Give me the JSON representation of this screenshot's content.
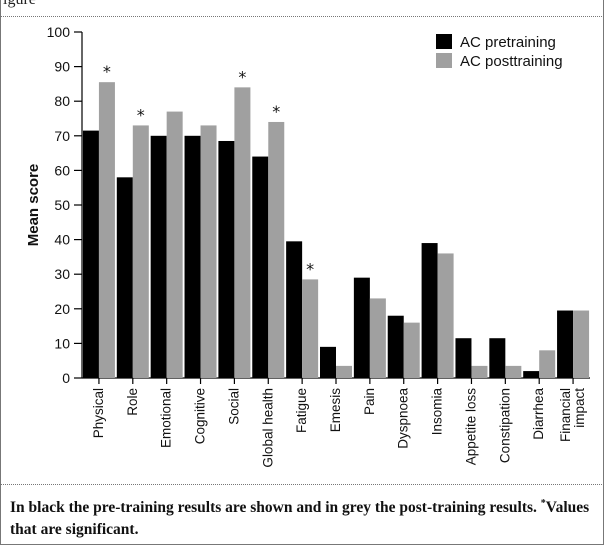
{
  "cropped_top_text": "igure",
  "chart_data": {
    "type": "bar",
    "ylabel": "Mean score",
    "ylim": [
      0,
      100
    ],
    "yticks": [
      0,
      10,
      20,
      30,
      40,
      50,
      60,
      70,
      80,
      90,
      100
    ],
    "categories": [
      "Physical",
      "Role",
      "Emotional",
      "Cognitive",
      "Social",
      "Global health",
      "Fatigue",
      "Emesis",
      "Pain",
      "Dyspnoea",
      "Insomia",
      "Appetite loss",
      "Constipation",
      "Diarrhea",
      "Financial impact"
    ],
    "category_lines": [
      [
        "Physical"
      ],
      [
        "Role"
      ],
      [
        "Emotional"
      ],
      [
        "Cognitive"
      ],
      [
        "Social"
      ],
      [
        "Global health"
      ],
      [
        "Fatigue"
      ],
      [
        "Emesis"
      ],
      [
        "Pain"
      ],
      [
        "Dyspnoea"
      ],
      [
        "Insomia"
      ],
      [
        "Appetite loss"
      ],
      [
        "Constipation"
      ],
      [
        "Diarrhea"
      ],
      [
        "Financial",
        "impact"
      ]
    ],
    "series": [
      {
        "name": "AC pretraining",
        "color": "#000000",
        "values": [
          71.5,
          58,
          70,
          70,
          68.5,
          64,
          39.5,
          9,
          29,
          18,
          39,
          11.5,
          11.5,
          2,
          19.5
        ]
      },
      {
        "name": "AC posttraining",
        "color": "#a0a0a0",
        "values": [
          85.5,
          73,
          77,
          73,
          84,
          74,
          28.5,
          3.5,
          23,
          16,
          36,
          3.5,
          3.5,
          8,
          19.5
        ]
      }
    ],
    "significance_marker": "*",
    "significant": [
      "Physical",
      "Role",
      "Social",
      "Global health",
      "Fatigue"
    ],
    "legend_position": "top-right",
    "grid": false
  },
  "caption": {
    "text1": "In black the pre-training results are shown and in grey the post-training results. ",
    "mark": "*",
    "text2": "Values that are significant."
  }
}
